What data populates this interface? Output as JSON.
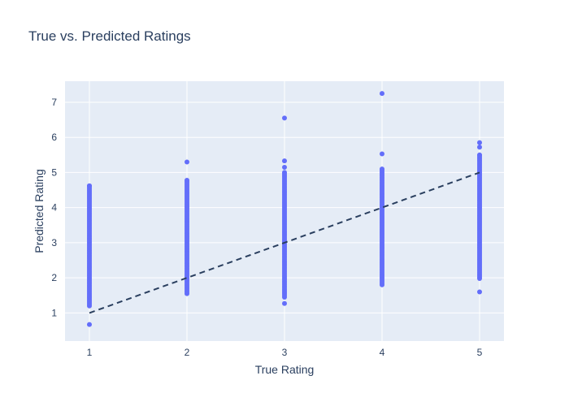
{
  "chart_data": {
    "type": "scatter",
    "title": "True vs. Predicted Ratings",
    "xlabel": "True Rating",
    "ylabel": "Predicted Rating",
    "xlim": [
      0.75,
      5.25
    ],
    "ylim": [
      0.2,
      7.6
    ],
    "x_ticks": [
      1,
      2,
      3,
      4,
      5
    ],
    "y_ticks": [
      1,
      2,
      3,
      4,
      5,
      6,
      7
    ],
    "grid": true,
    "colors": {
      "points": "#636efa",
      "line": "#2a3f5f",
      "plot_bg": "#e5ecf6",
      "grid": "#ffffff"
    },
    "reference_line": {
      "x": [
        1,
        5
      ],
      "y": [
        1,
        5
      ],
      "style": "dash"
    },
    "groups": [
      {
        "x": 1,
        "min": 1.2,
        "max": 4.62,
        "outliers": [
          0.67
        ]
      },
      {
        "x": 2,
        "min": 1.55,
        "max": 4.78,
        "outliers": [
          5.3
        ]
      },
      {
        "x": 3,
        "min": 1.45,
        "max": 5.0,
        "outliers": [
          1.27,
          5.15,
          5.33,
          6.55
        ]
      },
      {
        "x": 4,
        "min": 1.8,
        "max": 5.1,
        "outliers": [
          5.53,
          7.25
        ]
      },
      {
        "x": 5,
        "min": 1.98,
        "max": 5.5,
        "outliers": [
          1.6,
          5.72,
          5.85
        ]
      }
    ]
  }
}
